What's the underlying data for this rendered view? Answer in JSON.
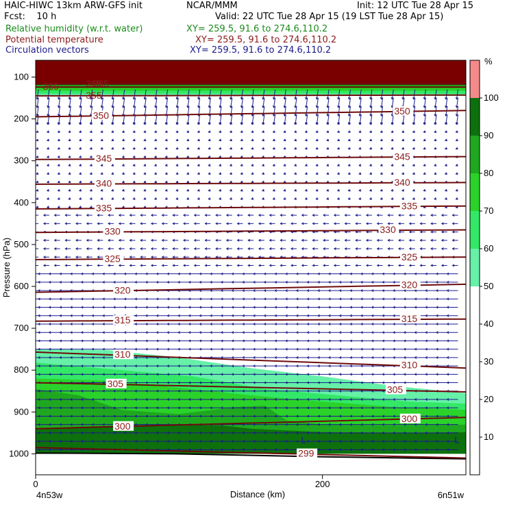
{
  "header": {
    "line1_left": "HAIC-HIWC 13km ARW-GFS init",
    "line1_mid": "NCAR/MMM",
    "line1_right": "Init: 12 UTC Tue 28 Apr 15",
    "line2_left": "Fcst:    10 h",
    "line2_right": "Valid: 22 UTC Tue 28 Apr 15 (19 LST Tue 28 Apr 15)",
    "field1": "Relative humidity (w.r.t. water)",
    "field1_xy": "XY= 259.5, 91.6 to 274.6,110.2",
    "field2": "Potential temperature",
    "field2_xy": "XY= 259.5, 91.6 to 274.6,110.2",
    "field3": "Circulation vectors",
    "field3_xy": "XY= 259.5, 91.6 to 274.6,110.2",
    "colors": {
      "field1": "#1a8a1a",
      "field2": "#8b1a1a",
      "field3": "#1a1a8a"
    }
  },
  "chart_data": {
    "type": "heatmap",
    "title": "",
    "xlabel": "Distance (km)",
    "ylabel": "Pressure (hPa)",
    "x_range": [
      0,
      300
    ],
    "y_range": [
      1050,
      60
    ],
    "x_ticks": [
      0,
      200
    ],
    "y_ticks": [
      100,
      200,
      300,
      400,
      500,
      600,
      700,
      800,
      900,
      1000
    ],
    "x_endpoint_labels": [
      "4n53w",
      "6n51w"
    ],
    "colorbar": {
      "unit": "%",
      "ticks": [
        10,
        20,
        30,
        40,
        50,
        60,
        70,
        80,
        90,
        100
      ],
      "levels": [
        {
          "from": 50,
          "to": 60,
          "color": "#66f0a8"
        },
        {
          "from": 60,
          "to": 70,
          "color": "#33e866"
        },
        {
          "from": 70,
          "to": 80,
          "color": "#2ad22a"
        },
        {
          "from": 80,
          "to": 90,
          "color": "#1fa81f"
        },
        {
          "from": 90,
          "to": 100,
          "color": "#0d700d"
        },
        {
          "from": 100,
          "to": 110,
          "color": "#f58a8a"
        }
      ]
    },
    "rh_regions": [
      {
        "name": "upper saturated band",
        "pressure_top": 60,
        "pressure_bottom": 145,
        "rh": "90-100+"
      },
      {
        "name": "lower moist layer",
        "pressure_top_at_x0": 750,
        "pressure_top_at_x300": 880,
        "rh": "50-100"
      }
    ],
    "theta_isentropes": [
      {
        "label": "365",
        "pressure": [
          117,
          117
        ]
      },
      {
        "label": "360",
        "pressure": [
          124,
          124
        ]
      },
      {
        "label": "355",
        "pressure": [
          145,
          143
        ]
      },
      {
        "label": "350",
        "pressure": [
          195,
          180
        ]
      },
      {
        "label": "345",
        "pressure": [
          297,
          290
        ]
      },
      {
        "label": "340",
        "pressure": [
          356,
          352
        ]
      },
      {
        "label": "335",
        "pressure": [
          415,
          408
        ]
      },
      {
        "label": "330",
        "pressure": [
          471,
          465
        ]
      },
      {
        "label": "325",
        "pressure": [
          536,
          530
        ]
      },
      {
        "label": "320",
        "pressure": [
          614,
          595
        ]
      },
      {
        "label": "315",
        "pressure": [
          683,
          678
        ]
      },
      {
        "label": "310",
        "pressure": [
          757,
          795
        ]
      },
      {
        "label": "305",
        "pressure": [
          830,
          852
        ]
      },
      {
        "label": "300",
        "pressure": [
          940,
          913
        ]
      },
      {
        "label": "299",
        "pressure": [
          985,
          1010
        ]
      }
    ],
    "low_markers": [
      "L",
      "L"
    ],
    "vectors": "mostly easterly (pointing left) circulation vectors at all levels; southerly-tilted in the 100-200 hPa layer"
  }
}
